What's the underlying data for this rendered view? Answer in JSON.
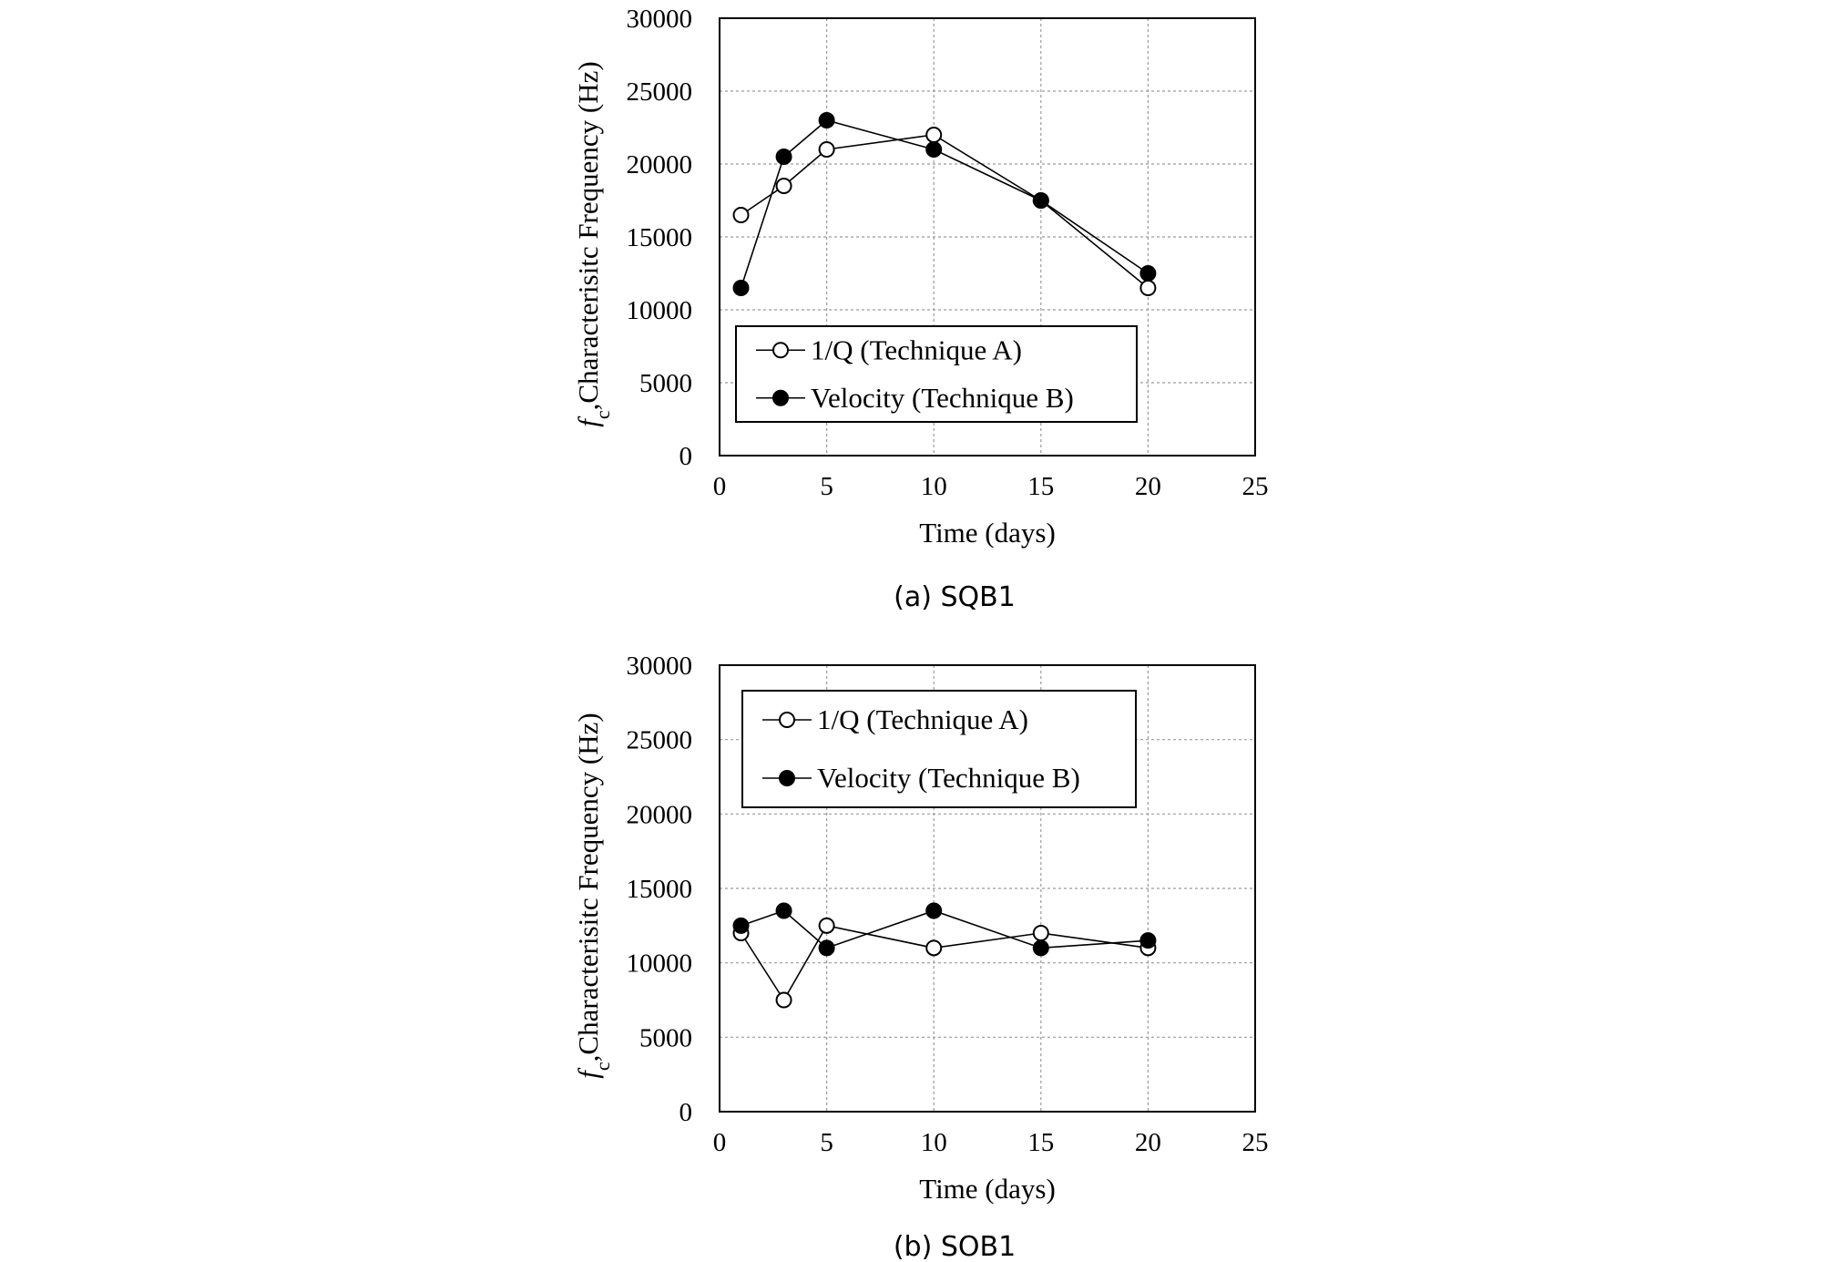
{
  "colors": {
    "axis": "#000000",
    "grid": "#9a9a9a",
    "line": "#000000",
    "open_marker_fill": "#ffffff",
    "filled_marker_fill": "#000000"
  },
  "chart_data": [
    {
      "type": "line",
      "caption": "(a) SQB1",
      "xlabel": "Time (days)",
      "ylabel_symbol": "f",
      "ylabel_subscript": "c",
      "ylabel_text": ",Characterisitc Frequency (Hz)",
      "xlim": [
        0,
        25
      ],
      "ylim": [
        0,
        30000
      ],
      "xticks": [
        "0",
        "5",
        "10",
        "15",
        "20",
        "25"
      ],
      "yticks": [
        "0",
        "5000",
        "10000",
        "15000",
        "20000",
        "25000",
        "30000"
      ],
      "grid": true,
      "legend_position": "bottom-left",
      "series": [
        {
          "name": "1/Q (Technique A)",
          "marker": "open-circle",
          "x": [
            1,
            3,
            5,
            10,
            15,
            20
          ],
          "y": [
            16500,
            18500,
            21000,
            22000,
            17500,
            11500
          ]
        },
        {
          "name": "Velocity (Technique B)",
          "marker": "filled-circle",
          "x": [
            1,
            3,
            5,
            10,
            15,
            20
          ],
          "y": [
            11500,
            20500,
            23000,
            21000,
            17500,
            12500
          ]
        }
      ]
    },
    {
      "type": "line",
      "caption": "(b) SOB1",
      "xlabel": "Time (days)",
      "ylabel_symbol": "f",
      "ylabel_subscript": "c",
      "ylabel_text": ",Characterisitc Frequency (Hz)",
      "xlim": [
        0,
        25
      ],
      "ylim": [
        0,
        30000
      ],
      "xticks": [
        "0",
        "5",
        "10",
        "15",
        "20",
        "25"
      ],
      "yticks": [
        "0",
        "5000",
        "10000",
        "15000",
        "20000",
        "25000",
        "30000"
      ],
      "grid": true,
      "legend_position": "top-left",
      "series": [
        {
          "name": "1/Q (Technique A)",
          "marker": "open-circle",
          "x": [
            1,
            3,
            5,
            10,
            15,
            20
          ],
          "y": [
            12000,
            7500,
            12500,
            11000,
            12000,
            11000
          ]
        },
        {
          "name": "Velocity (Technique B)",
          "marker": "filled-circle",
          "x": [
            1,
            3,
            5,
            10,
            15,
            20
          ],
          "y": [
            12500,
            13500,
            11000,
            13500,
            11000,
            11500
          ]
        }
      ]
    }
  ]
}
